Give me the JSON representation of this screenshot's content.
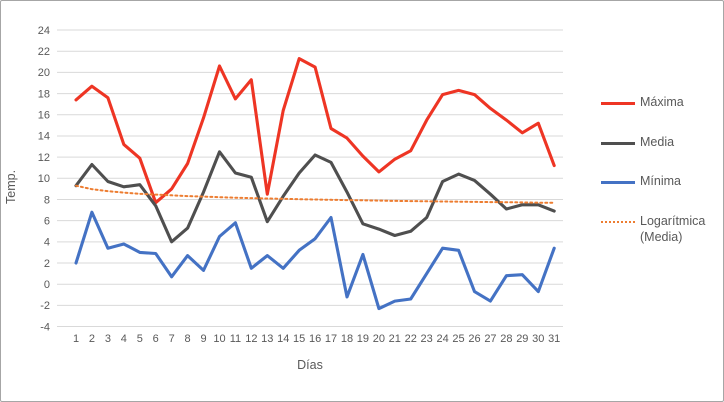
{
  "window": {
    "background": "#ffffff",
    "border_color": "#a6a6a6"
  },
  "chart_data": {
    "type": "line",
    "x": [
      1,
      2,
      3,
      4,
      5,
      6,
      7,
      8,
      9,
      10,
      11,
      12,
      13,
      14,
      15,
      16,
      17,
      18,
      19,
      20,
      21,
      22,
      23,
      24,
      25,
      26,
      27,
      28,
      29,
      30,
      31
    ],
    "series": [
      {
        "name": "Máxima",
        "color": "#ee3524",
        "style": "solid",
        "values": [
          17.4,
          18.7,
          17.6,
          13.2,
          11.9,
          7.7,
          9.0,
          11.4,
          15.7,
          20.6,
          17.5,
          19.3,
          8.5,
          16.4,
          21.3,
          20.5,
          14.7,
          13.8,
          12.1,
          10.6,
          11.8,
          12.6,
          15.5,
          17.9,
          18.3,
          17.9,
          16.6,
          15.5,
          14.3,
          15.2,
          11.2
        ]
      },
      {
        "name": "Media",
        "color": "#4f4f4f",
        "style": "solid",
        "values": [
          9.3,
          11.3,
          9.7,
          9.2,
          9.4,
          7.4,
          4.0,
          5.3,
          8.7,
          12.5,
          10.5,
          10.1,
          5.9,
          8.3,
          10.5,
          12.2,
          11.5,
          8.7,
          5.7,
          5.2,
          4.6,
          5.0,
          6.3,
          9.7,
          10.4,
          9.8,
          8.5,
          7.1,
          7.5,
          7.5,
          6.9
        ]
      },
      {
        "name": "Mínima",
        "color": "#4472c4",
        "style": "solid",
        "values": [
          2.0,
          6.8,
          3.4,
          3.8,
          3.0,
          2.9,
          0.7,
          2.7,
          1.3,
          4.5,
          5.8,
          1.5,
          2.7,
          1.5,
          3.2,
          4.3,
          6.3,
          -1.2,
          2.8,
          -2.3,
          -1.6,
          -1.4,
          1.0,
          3.4,
          3.2,
          -0.7,
          -1.6,
          0.8,
          0.9,
          -0.7,
          3.4
        ]
      },
      {
        "name": "Logarítmica (Media)",
        "legend_lines": [
          "Logarítmica",
          "(Media)"
        ],
        "color": "#ed7d31",
        "style": "dotted",
        "values": [
          9.3,
          8.97,
          8.78,
          8.65,
          8.54,
          8.46,
          8.39,
          8.32,
          8.27,
          8.22,
          8.17,
          8.13,
          8.09,
          8.06,
          8.03,
          8.0,
          7.97,
          7.94,
          7.92,
          7.89,
          7.87,
          7.85,
          7.83,
          7.81,
          7.79,
          7.77,
          7.75,
          7.74,
          7.72,
          7.7,
          7.69
        ]
      }
    ],
    "title": "",
    "xlabel": "Días",
    "ylabel": "Temp.",
    "ylim": [
      -4,
      24
    ],
    "ytick_step": 2,
    "grid": true,
    "gridline_color": "#d9d9d9",
    "tick_label_color": "#595959",
    "legend_position": "right"
  }
}
